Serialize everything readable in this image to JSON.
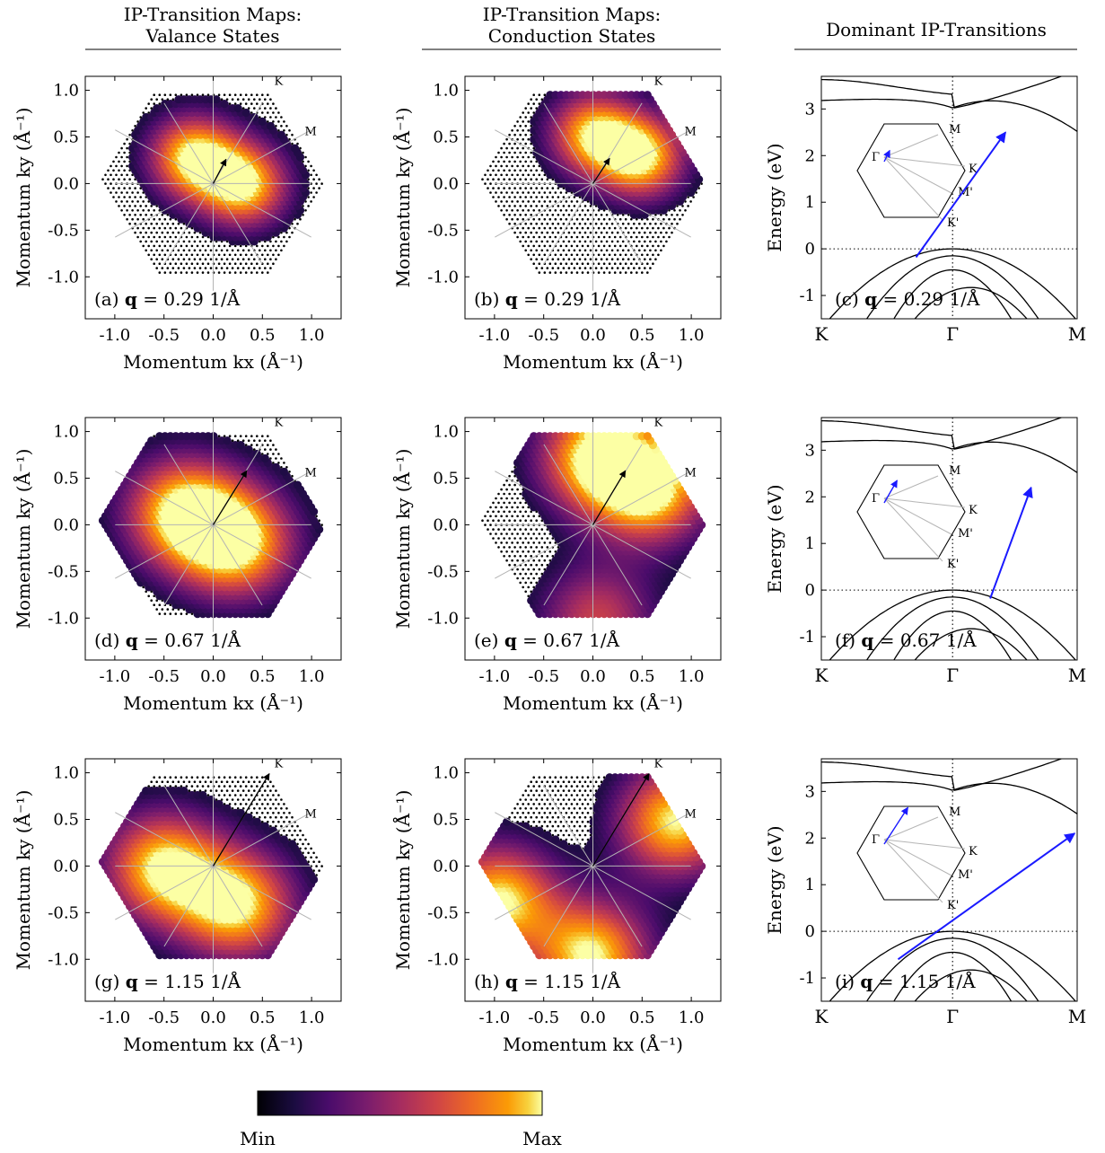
{
  "headers": {
    "col1_line1": "IP-Transition Maps:",
    "col1_line2": "Valance States",
    "col2_line1": "IP-Transition Maps:",
    "col2_line2": "Conduction States",
    "col3": "Dominant IP-Transitions"
  },
  "colorbar": {
    "min_label": "Min",
    "max_label": "Max",
    "colormap": "inferno"
  },
  "colors": {
    "arrow_blue": "#1a1aff",
    "map_black": "#000000",
    "guide_gray": "#b4b4b4"
  },
  "chart_data": [
    {
      "id": "a",
      "type": "heatmap",
      "panel_label": "(a)",
      "q_label": "q",
      "q_value": "= 0.29 1/Å",
      "xlabel": "Momentum kx (Å⁻¹)",
      "ylabel": "Momentum ky (Å⁻¹)",
      "xlim": [
        -1.3,
        1.3
      ],
      "ylim": [
        -1.45,
        1.15
      ],
      "x_ticks": [
        "-1.0",
        "-0.5",
        "0.0",
        "0.5",
        "1.0"
      ],
      "y_ticks": [
        "1.0",
        "0.5",
        "0.0",
        "-0.5",
        "-1.0"
      ],
      "k_labels": [
        "K",
        "M"
      ],
      "q_vector": [
        0.13,
        0.26
      ],
      "hotspots": [
        {
          "x": -0.2,
          "y": 0.3,
          "w": 1.0
        },
        {
          "x": 0.32,
          "y": 0.0,
          "w": 1.0
        }
      ]
    },
    {
      "id": "b",
      "type": "heatmap",
      "panel_label": "(b)",
      "q_label": "q",
      "q_value": "= 0.29 1/Å",
      "xlabel": "Momentum kx (Å⁻¹)",
      "ylabel": "Momentum ky (Å⁻¹)",
      "xlim": [
        -1.3,
        1.3
      ],
      "ylim": [
        -1.45,
        1.15
      ],
      "x_ticks": [
        "-1.0",
        "-0.5",
        "0.0",
        "0.5",
        "1.0"
      ],
      "y_ticks": [
        "1.0",
        "0.5",
        "0.0",
        "-0.5",
        "-1.0"
      ],
      "k_labels": [
        "K",
        "M"
      ],
      "q_vector": [
        0.17,
        0.27
      ],
      "hotspots": [
        {
          "x": 0.0,
          "y": 0.55,
          "w": 0.9
        },
        {
          "x": 0.5,
          "y": 0.3,
          "w": 1.0
        }
      ]
    },
    {
      "id": "c",
      "type": "line",
      "panel_label": "(c)",
      "q_label": "q",
      "q_value": "= 0.29 1/Å",
      "ylabel": "Energy (eV)",
      "ylim": [
        -1.5,
        3.7
      ],
      "x_ticks": [
        "K",
        "Γ",
        "M"
      ],
      "y_ticks": [
        "3",
        "2",
        "1",
        "0",
        "-1"
      ],
      "transition": {
        "from": [
          0.37,
          -0.18
        ],
        "to": [
          0.72,
          2.5
        ]
      },
      "inset_labels": [
        "M",
        "Γ",
        "K",
        "M'",
        "K'"
      ],
      "inset_arrow": [
        0.13,
        0.26
      ]
    },
    {
      "id": "d",
      "type": "heatmap",
      "panel_label": "(d)",
      "q_label": "q",
      "q_value": "= 0.67 1/Å",
      "xlabel": "Momentum kx (Å⁻¹)",
      "ylabel": "Momentum ky (Å⁻¹)",
      "xlim": [
        -1.3,
        1.3
      ],
      "ylim": [
        -1.45,
        1.15
      ],
      "x_ticks": [
        "-1.0",
        "-0.5",
        "0.0",
        "0.5",
        "1.0"
      ],
      "y_ticks": [
        "1.0",
        "0.5",
        "0.0",
        "-0.5",
        "-1.0"
      ],
      "k_labels": [
        "K",
        "M"
      ],
      "q_vector": [
        0.34,
        0.58
      ],
      "hotspots": [
        {
          "x": -0.3,
          "y": 0.15,
          "w": 1.0
        },
        {
          "x": 0.25,
          "y": -0.18,
          "w": 1.0
        }
      ]
    },
    {
      "id": "e",
      "type": "heatmap",
      "panel_label": "(e)",
      "q_label": "q",
      "q_value": "= 0.67 1/Å",
      "xlabel": "Momentum kx (Å⁻¹)",
      "ylabel": "Momentum ky (Å⁻¹)",
      "xlim": [
        -1.3,
        1.3
      ],
      "ylim": [
        -1.45,
        1.15
      ],
      "x_ticks": [
        "-1.0",
        "-0.5",
        "0.0",
        "0.5",
        "1.0"
      ],
      "y_ticks": [
        "1.0",
        "0.5",
        "0.0",
        "-0.5",
        "-1.0"
      ],
      "k_labels": [
        "K",
        "M"
      ],
      "q_vector": [
        0.33,
        0.58
      ],
      "hotspots": [
        {
          "x": 0.05,
          "y": 0.75,
          "w": 1.0
        },
        {
          "x": 0.6,
          "y": 0.4,
          "w": 1.0
        },
        {
          "x": 0.05,
          "y": -1.0,
          "w": 0.6
        }
      ]
    },
    {
      "id": "f",
      "type": "line",
      "panel_label": "(f)",
      "q_label": "q",
      "q_value": "= 0.67 1/Å",
      "ylabel": "Energy (eV)",
      "ylim": [
        -1.5,
        3.7
      ],
      "x_ticks": [
        "K",
        "Γ",
        "M"
      ],
      "y_ticks": [
        "3",
        "2",
        "1",
        "0",
        "-1"
      ],
      "transition": {
        "from": [
          0.66,
          -0.18
        ],
        "to": [
          0.82,
          2.2
        ]
      },
      "inset_labels": [
        "M",
        "Γ",
        "K",
        "M'",
        "K'"
      ],
      "inset_arrow": [
        0.3,
        0.52
      ]
    },
    {
      "id": "g",
      "type": "heatmap",
      "panel_label": "(g)",
      "q_label": "q",
      "q_value": "= 1.15 1/Å",
      "xlabel": "Momentum kx (Å⁻¹)",
      "ylabel": "Momentum ky (Å⁻¹)",
      "xlim": [
        -1.3,
        1.3
      ],
      "ylim": [
        -1.45,
        1.15
      ],
      "x_ticks": [
        "-1.0",
        "-0.5",
        "0.0",
        "0.5",
        "1.0"
      ],
      "y_ticks": [
        "1.0",
        "0.5",
        "0.0",
        "-0.5",
        "-1.0"
      ],
      "k_labels": [
        "K",
        "M"
      ],
      "q_vector": [
        0.57,
        0.99
      ],
      "hotspots": [
        {
          "x": -0.5,
          "y": 0.0,
          "w": 1.0
        },
        {
          "x": 0.25,
          "y": -0.4,
          "w": 1.0
        }
      ]
    },
    {
      "id": "h",
      "type": "heatmap",
      "panel_label": "(h)",
      "q_label": "q",
      "q_value": "= 1.15 1/Å",
      "xlabel": "Momentum kx (Å⁻¹)",
      "ylabel": "Momentum ky (Å⁻¹)",
      "xlim": [
        -1.3,
        1.3
      ],
      "ylim": [
        -1.45,
        1.15
      ],
      "x_ticks": [
        "-1.0",
        "-0.5",
        "0.0",
        "0.5",
        "1.0"
      ],
      "y_ticks": [
        "1.0",
        "0.5",
        "0.0",
        "-0.5",
        "-1.0"
      ],
      "k_labels": [
        "K",
        "M"
      ],
      "q_vector": [
        0.57,
        0.99
      ],
      "hotspots": [
        {
          "x": 0.85,
          "y": 0.5,
          "w": 1.0
        },
        {
          "x": -0.95,
          "y": -0.35,
          "w": 1.0
        },
        {
          "x": 0.0,
          "y": -0.95,
          "w": 1.0
        }
      ]
    },
    {
      "id": "i",
      "type": "line",
      "panel_label": "(i)",
      "q_label": "q",
      "q_value": "= 1.15 1/Å",
      "ylabel": "Energy (eV)",
      "ylim": [
        -1.5,
        3.7
      ],
      "x_ticks": [
        "K",
        "Γ",
        "M"
      ],
      "y_ticks": [
        "3",
        "2",
        "1",
        "0",
        "-1"
      ],
      "transition": {
        "from": [
          0.3,
          -0.6
        ],
        "to": [
          0.99,
          2.1
        ]
      },
      "inset_labels": [
        "M",
        "Γ",
        "K",
        "M'",
        "K'"
      ],
      "inset_arrow": [
        0.55,
        0.85
      ]
    }
  ]
}
